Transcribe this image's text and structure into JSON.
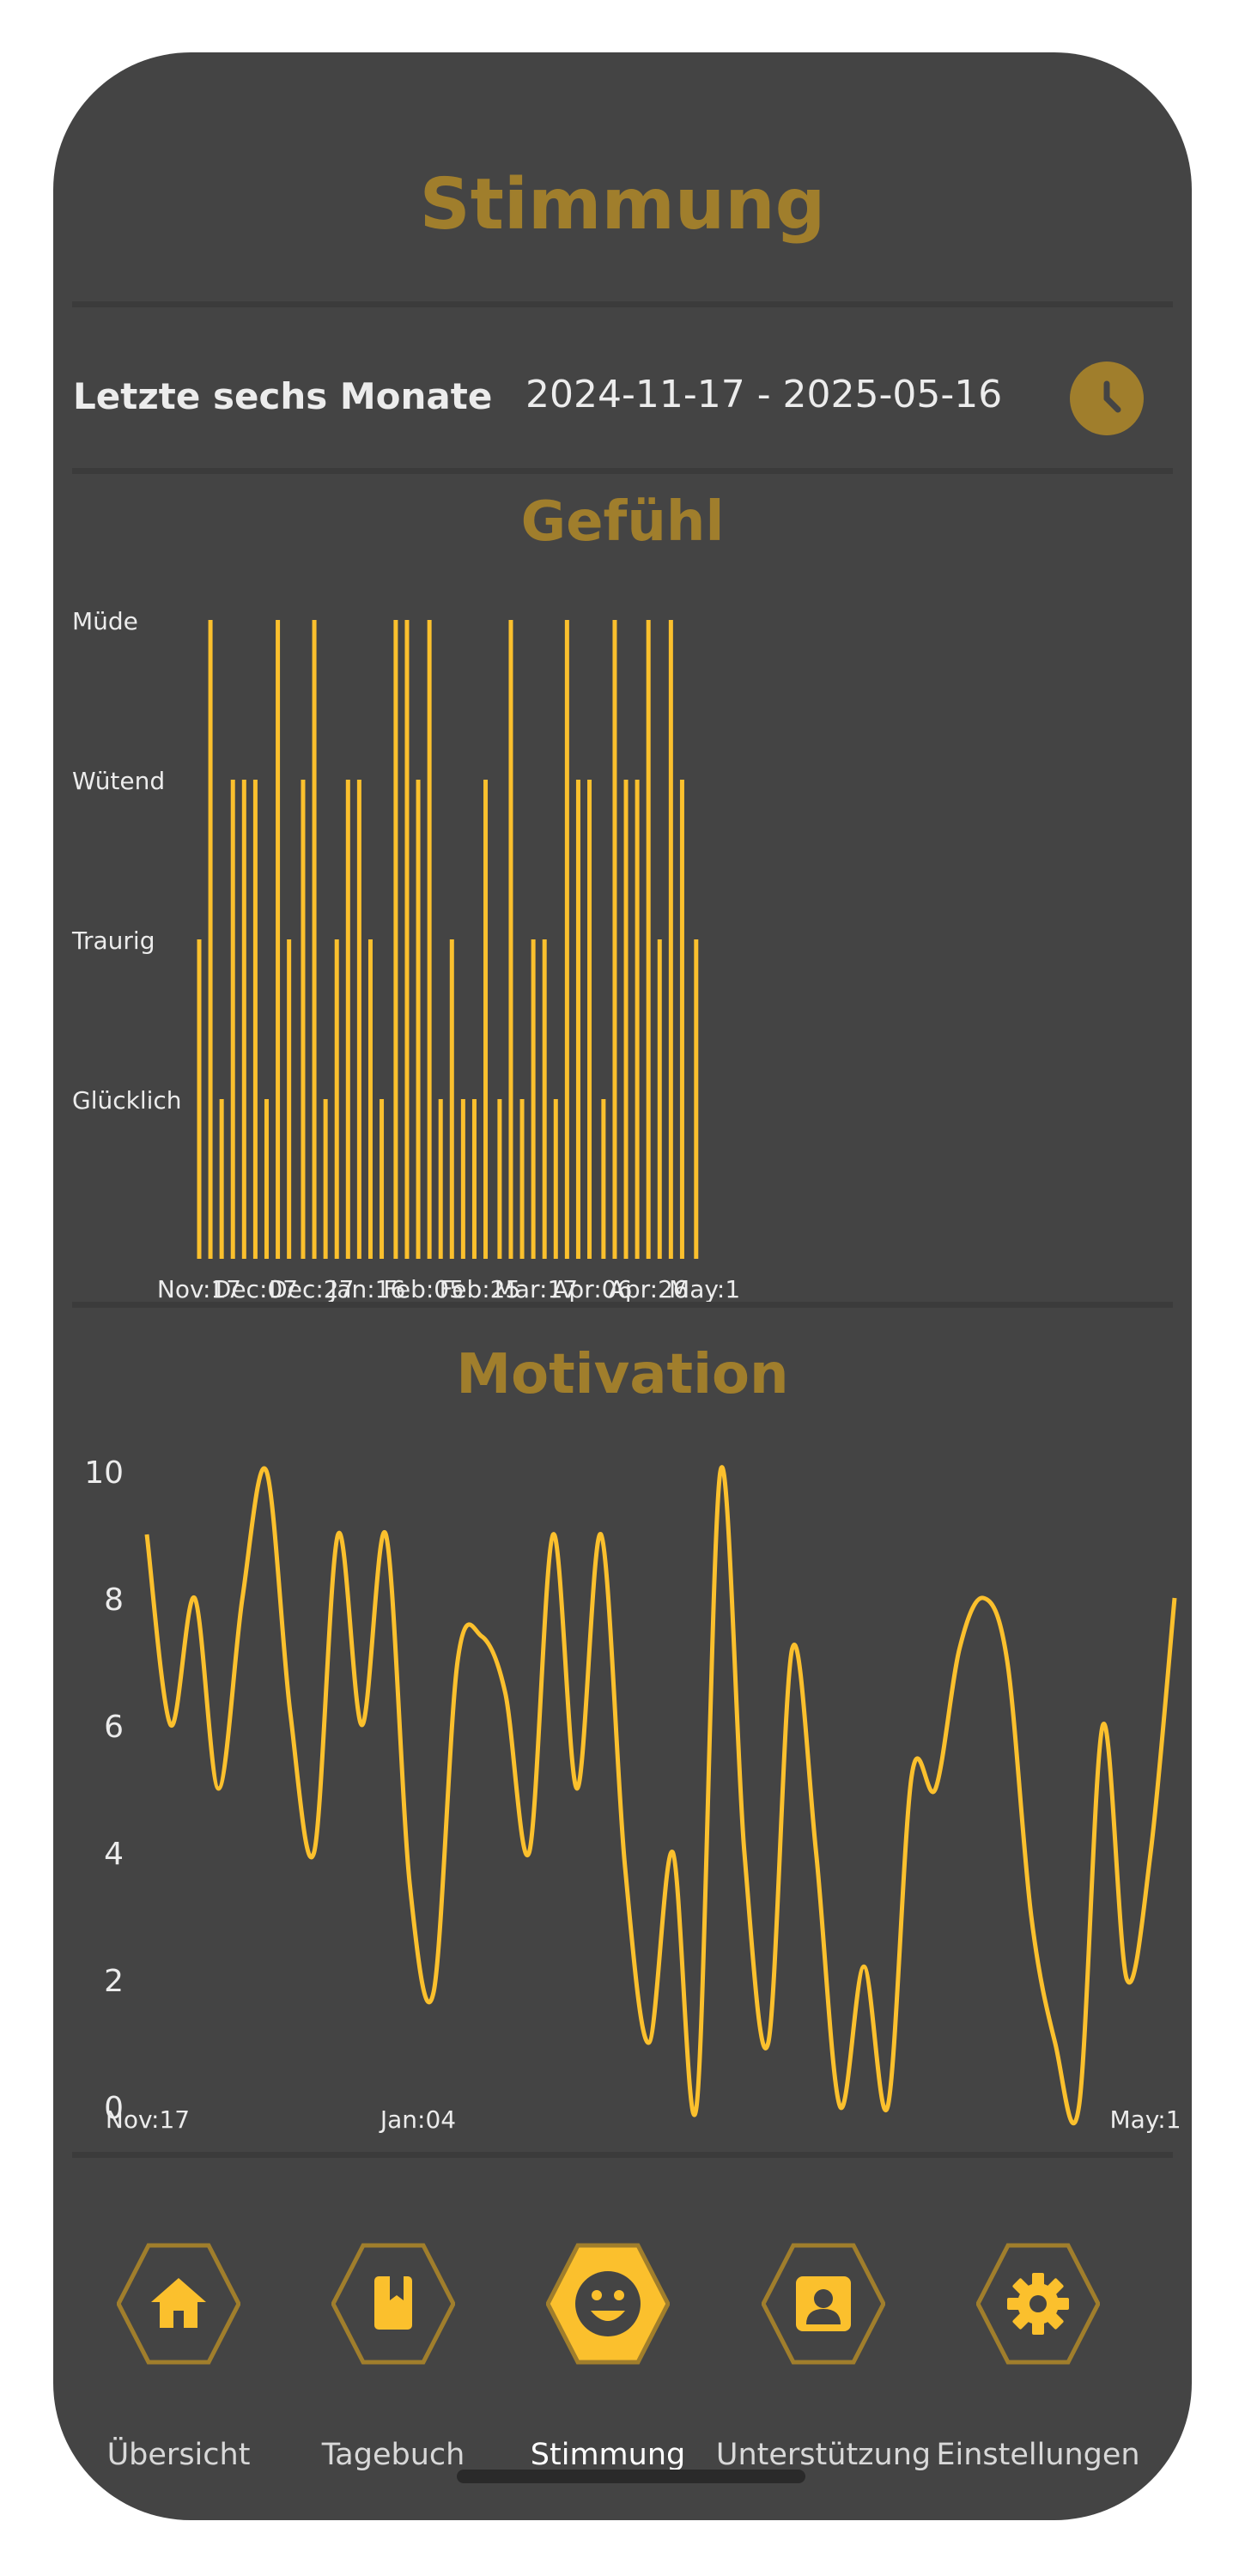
{
  "header": {
    "title": "Stimmung"
  },
  "range": {
    "label": "Letzte sechs Monate",
    "value": "2024-11-17 - 2025-05-16",
    "button_icon": "clock-icon"
  },
  "colors": {
    "accent": "#fbc02d",
    "accent_dark": "#a07e2c",
    "background": "#444444",
    "divider": "#3b3b3b"
  },
  "feeling": {
    "title": "Gefühl",
    "x_tick_labels": [
      "Nov:17",
      "Dec:07",
      "Dec:27",
      "Jan:16",
      "Feb:05",
      "Feb:25",
      "Mar:17",
      "Apr:06",
      "Apr:26",
      "May:1"
    ]
  },
  "motivation": {
    "title": "Motivation",
    "x_tick_labels": [
      "Nov:17",
      "Jan:04",
      "May:1"
    ]
  },
  "chart_data": [
    {
      "type": "bar",
      "title": "Gefühl",
      "y_categories": [
        "Glücklich",
        "Traurig",
        "Wütend",
        "Müde"
      ],
      "x_tick_labels": [
        "Nov:17",
        "Dec:07",
        "Dec:27",
        "Jan:16",
        "Feb:05",
        "Feb:25",
        "Mar:17",
        "Apr:06",
        "Apr:26",
        "May:1"
      ],
      "x_range_days": [
        0,
        183
      ],
      "points": [
        {
          "day": 0,
          "level": 2
        },
        {
          "day": 4,
          "level": 4
        },
        {
          "day": 8,
          "level": 1
        },
        {
          "day": 12,
          "level": 3
        },
        {
          "day": 16,
          "level": 3
        },
        {
          "day": 20,
          "level": 3
        },
        {
          "day": 24,
          "level": 1
        },
        {
          "day": 28,
          "level": 4
        },
        {
          "day": 32,
          "level": 2
        },
        {
          "day": 37,
          "level": 3
        },
        {
          "day": 41,
          "level": 4
        },
        {
          "day": 45,
          "level": 1
        },
        {
          "day": 49,
          "level": 2
        },
        {
          "day": 53,
          "level": 3
        },
        {
          "day": 57,
          "level": 3
        },
        {
          "day": 61,
          "level": 2
        },
        {
          "day": 65,
          "level": 1
        },
        {
          "day": 70,
          "level": 4
        },
        {
          "day": 74,
          "level": 4
        },
        {
          "day": 78,
          "level": 3
        },
        {
          "day": 82,
          "level": 4
        },
        {
          "day": 86,
          "level": 1
        },
        {
          "day": 90,
          "level": 2
        },
        {
          "day": 94,
          "level": 1
        },
        {
          "day": 98,
          "level": 1
        },
        {
          "day": 102,
          "level": 3
        },
        {
          "day": 107,
          "level": 1
        },
        {
          "day": 111,
          "level": 4
        },
        {
          "day": 115,
          "level": 1
        },
        {
          "day": 119,
          "level": 2
        },
        {
          "day": 123,
          "level": 2
        },
        {
          "day": 127,
          "level": 1
        },
        {
          "day": 131,
          "level": 4
        },
        {
          "day": 135,
          "level": 3
        },
        {
          "day": 139,
          "level": 3
        },
        {
          "day": 144,
          "level": 1
        },
        {
          "day": 148,
          "level": 4
        },
        {
          "day": 152,
          "level": 3
        },
        {
          "day": 156,
          "level": 3
        },
        {
          "day": 160,
          "level": 4
        },
        {
          "day": 164,
          "level": 2
        },
        {
          "day": 168,
          "level": 4
        },
        {
          "day": 172,
          "level": 3
        },
        {
          "day": 177,
          "level": 2
        }
      ]
    },
    {
      "type": "line",
      "title": "Motivation",
      "y_ticks": [
        0,
        2,
        4,
        6,
        8,
        10
      ],
      "ylim": [
        0,
        10
      ],
      "x_tick_labels": [
        "Nov:17",
        "Jan:04",
        "May:1"
      ],
      "values": [
        9,
        6,
        8,
        5,
        8,
        10,
        6.2,
        4,
        9,
        6,
        9,
        3.5,
        1.8,
        7,
        7.4,
        6.5,
        4,
        9,
        5,
        9,
        3.8,
        1,
        4,
        0,
        10,
        4,
        1,
        7.2,
        4,
        0,
        2.2,
        0,
        5.2,
        5,
        7.2,
        8,
        7,
        3,
        1,
        0,
        6,
        2,
        4,
        8
      ]
    }
  ],
  "nav": {
    "items": [
      {
        "label": "Übersicht",
        "icon": "home-icon",
        "active": false
      },
      {
        "label": "Tagebuch",
        "icon": "book-icon",
        "active": false
      },
      {
        "label": "Stimmung",
        "icon": "smiley-icon",
        "active": true
      },
      {
        "label": "Unterstützung",
        "icon": "contact-icon",
        "active": false
      },
      {
        "label": "Einstellungen",
        "icon": "gear-icon",
        "active": false
      }
    ]
  }
}
